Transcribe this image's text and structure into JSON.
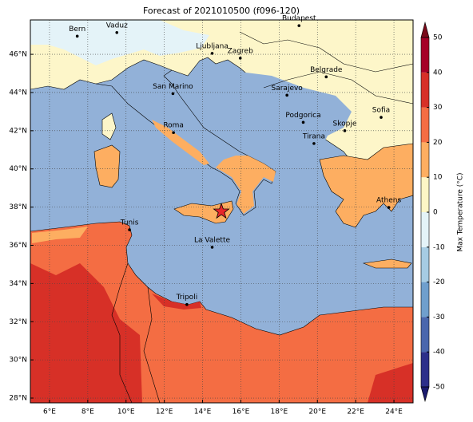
{
  "title": "Forecast of 2021010500 (f096-120)",
  "map": {
    "xlim": [
      5,
      25
    ],
    "ylim": [
      27.75,
      47.8
    ],
    "xticks": [
      {
        "value": 6,
        "label": "6°E"
      },
      {
        "value": 8,
        "label": "8°E"
      },
      {
        "value": 10,
        "label": "10°E"
      },
      {
        "value": 12,
        "label": "12°E"
      },
      {
        "value": 14,
        "label": "14°E"
      },
      {
        "value": 16,
        "label": "16°E"
      },
      {
        "value": 18,
        "label": "18°E"
      },
      {
        "value": 20,
        "label": "20°E"
      },
      {
        "value": 22,
        "label": "22°E"
      },
      {
        "value": 24,
        "label": "24°E"
      }
    ],
    "yticks": [
      {
        "value": 28,
        "label": "28°N"
      },
      {
        "value": 30,
        "label": "30°N"
      },
      {
        "value": 32,
        "label": "32°N"
      },
      {
        "value": 34,
        "label": "34°N"
      },
      {
        "value": 36,
        "label": "36°N"
      },
      {
        "value": 38,
        "label": "38°N"
      },
      {
        "value": 40,
        "label": "40°N"
      },
      {
        "value": 42,
        "label": "42°N"
      },
      {
        "value": 44,
        "label": "44°N"
      },
      {
        "value": 46,
        "label": "46°N"
      }
    ],
    "grid": true,
    "cities": [
      {
        "name": "Bern",
        "lon": 7.45,
        "lat": 46.95
      },
      {
        "name": "Vaduz",
        "lon": 9.52,
        "lat": 47.14
      },
      {
        "name": "Budapest",
        "lon": 19.04,
        "lat": 47.5
      },
      {
        "name": "Ljubljana",
        "lon": 14.5,
        "lat": 46.05
      },
      {
        "name": "Zagreb",
        "lon": 15.97,
        "lat": 45.8
      },
      {
        "name": "San Marino",
        "lon": 12.45,
        "lat": 43.94
      },
      {
        "name": "Belgrade",
        "lon": 20.46,
        "lat": 44.82
      },
      {
        "name": "Sarajevo",
        "lon": 18.41,
        "lat": 43.86
      },
      {
        "name": "Sofia",
        "lon": 23.33,
        "lat": 42.7
      },
      {
        "name": "Podgorica",
        "lon": 19.26,
        "lat": 42.44
      },
      {
        "name": "Skopje",
        "lon": 21.43,
        "lat": 42.0
      },
      {
        "name": "Roma",
        "lon": 12.48,
        "lat": 41.9
      },
      {
        "name": "Tirana",
        "lon": 19.82,
        "lat": 41.33
      },
      {
        "name": "Athens",
        "lon": 23.73,
        "lat": 37.98
      },
      {
        "name": "Tunis",
        "lon": 10.18,
        "lat": 36.81
      },
      {
        "name": "La Valette",
        "lon": 14.5,
        "lat": 35.9
      },
      {
        "name": "Tripoli",
        "lon": 13.18,
        "lat": 32.9
      }
    ],
    "star": {
      "lon": 14.98,
      "lat": 37.77,
      "color": "#e8262a"
    }
  },
  "colorbar": {
    "label": "Max Temperature (°C)",
    "ticks": [
      -50,
      -40,
      -30,
      -20,
      -10,
      0,
      10,
      20,
      30,
      40,
      50
    ],
    "colors": [
      "#2c2f8a",
      "#4a67ad",
      "#6f9fcd",
      "#a6cce3",
      "#e4f3f8",
      "#fef6c6",
      "#fdae61",
      "#f46d43",
      "#d73027",
      "#a50026"
    ],
    "under": "#1a1a6e",
    "over": "#7a0a1a"
  }
}
